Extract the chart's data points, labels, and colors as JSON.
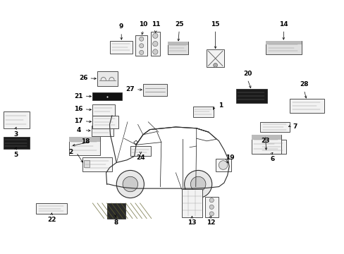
{
  "bg_color": "#ffffff",
  "parts": [
    {
      "id": 1,
      "bx": 0.56,
      "by": 0.42,
      "bw": 0.06,
      "bh": 0.04,
      "nx": 0.64,
      "ny": 0.415,
      "arrow": "left",
      "style": "lined"
    },
    {
      "id": 2,
      "bx": 0.24,
      "by": 0.62,
      "bw": 0.085,
      "bh": 0.055,
      "nx": 0.205,
      "ny": 0.6,
      "arrow": "right",
      "style": "lined_check"
    },
    {
      "id": 3,
      "bx": 0.01,
      "by": 0.44,
      "bw": 0.075,
      "bh": 0.065,
      "nx": 0.045,
      "ny": 0.53,
      "arrow": "up",
      "style": "lined"
    },
    {
      "id": 4,
      "bx": 0.265,
      "by": 0.495,
      "bw": 0.065,
      "bh": 0.04,
      "nx": 0.228,
      "ny": 0.513,
      "arrow": "right",
      "style": "lined_small"
    },
    {
      "id": 5,
      "bx": 0.01,
      "by": 0.54,
      "bw": 0.075,
      "bh": 0.045,
      "nx": 0.045,
      "ny": 0.61,
      "arrow": "up",
      "style": "dark_lined"
    },
    {
      "id": 6,
      "bx": 0.755,
      "by": 0.55,
      "bw": 0.075,
      "bh": 0.055,
      "nx": 0.79,
      "ny": 0.625,
      "arrow": "up",
      "style": "lined"
    },
    {
      "id": 7,
      "bx": 0.755,
      "by": 0.48,
      "bw": 0.085,
      "bh": 0.04,
      "nx": 0.855,
      "ny": 0.498,
      "arrow": "left",
      "style": "lined"
    },
    {
      "id": 8,
      "bx": 0.31,
      "by": 0.8,
      "bw": 0.055,
      "bh": 0.06,
      "nx": 0.337,
      "ny": 0.875,
      "arrow": "up",
      "style": "dark_diag"
    },
    {
      "id": 9,
      "bx": 0.32,
      "by": 0.16,
      "bw": 0.065,
      "bh": 0.05,
      "nx": 0.352,
      "ny": 0.105,
      "arrow": "down",
      "style": "lined"
    },
    {
      "id": 10,
      "bx": 0.393,
      "by": 0.14,
      "bw": 0.035,
      "bh": 0.08,
      "nx": 0.415,
      "ny": 0.095,
      "arrow": "down",
      "style": "circles_v"
    },
    {
      "id": 11,
      "bx": 0.437,
      "by": 0.125,
      "bw": 0.027,
      "bh": 0.095,
      "nx": 0.452,
      "ny": 0.095,
      "arrow": "down",
      "style": "circles_v"
    },
    {
      "id": 12,
      "bx": 0.595,
      "by": 0.775,
      "bw": 0.038,
      "bh": 0.08,
      "nx": 0.612,
      "ny": 0.875,
      "arrow": "up",
      "style": "circles_v"
    },
    {
      "id": 13,
      "bx": 0.527,
      "by": 0.745,
      "bw": 0.06,
      "bh": 0.11,
      "nx": 0.557,
      "ny": 0.875,
      "arrow": "up",
      "style": "grid"
    },
    {
      "id": 14,
      "bx": 0.77,
      "by": 0.16,
      "bw": 0.105,
      "bh": 0.055,
      "nx": 0.823,
      "ny": 0.095,
      "arrow": "down",
      "style": "lined_dark"
    },
    {
      "id": 15,
      "bx": 0.6,
      "by": 0.195,
      "bw": 0.05,
      "bh": 0.07,
      "nx": 0.625,
      "ny": 0.095,
      "arrow": "down",
      "style": "cross_box"
    },
    {
      "id": 16,
      "bx": 0.268,
      "by": 0.41,
      "bw": 0.065,
      "bh": 0.045,
      "nx": 0.228,
      "ny": 0.43,
      "arrow": "right",
      "style": "lined_small"
    },
    {
      "id": 17,
      "bx": 0.268,
      "by": 0.455,
      "bw": 0.075,
      "bh": 0.05,
      "nx": 0.228,
      "ny": 0.477,
      "arrow": "right",
      "style": "lined"
    },
    {
      "id": 18,
      "bx": 0.2,
      "by": 0.54,
      "bw": 0.09,
      "bh": 0.07,
      "nx": 0.248,
      "ny": 0.558,
      "arrow": "right",
      "style": "lined_titled"
    },
    {
      "id": 19,
      "bx": 0.625,
      "by": 0.625,
      "bw": 0.045,
      "bh": 0.05,
      "nx": 0.668,
      "ny": 0.62,
      "arrow": "left",
      "style": "circle_icon"
    },
    {
      "id": 20,
      "bx": 0.685,
      "by": 0.35,
      "bw": 0.09,
      "bh": 0.055,
      "nx": 0.718,
      "ny": 0.29,
      "arrow": "down",
      "style": "dark_lined"
    },
    {
      "id": 21,
      "bx": 0.268,
      "by": 0.365,
      "bw": 0.085,
      "bh": 0.03,
      "nx": 0.228,
      "ny": 0.378,
      "arrow": "right",
      "style": "dark_solid"
    },
    {
      "id": 22,
      "bx": 0.105,
      "by": 0.8,
      "bw": 0.09,
      "bh": 0.042,
      "nx": 0.15,
      "ny": 0.865,
      "arrow": "up",
      "style": "lined"
    },
    {
      "id": 23,
      "bx": 0.73,
      "by": 0.53,
      "bw": 0.085,
      "bh": 0.075,
      "nx": 0.77,
      "ny": 0.555,
      "arrow": "up",
      "style": "lined_titled"
    },
    {
      "id": 24,
      "bx": 0.378,
      "by": 0.575,
      "bw": 0.06,
      "bh": 0.038,
      "nx": 0.408,
      "ny": 0.62,
      "arrow": "up",
      "style": "lined_small"
    },
    {
      "id": 25,
      "bx": 0.487,
      "by": 0.165,
      "bw": 0.06,
      "bh": 0.048,
      "nx": 0.52,
      "ny": 0.095,
      "arrow": "down",
      "style": "lined_dark"
    },
    {
      "id": 26,
      "bx": 0.282,
      "by": 0.28,
      "bw": 0.06,
      "bh": 0.06,
      "nx": 0.242,
      "ny": 0.308,
      "arrow": "right",
      "style": "icon_box"
    },
    {
      "id": 27,
      "bx": 0.415,
      "by": 0.33,
      "bw": 0.07,
      "bh": 0.048,
      "nx": 0.378,
      "ny": 0.352,
      "arrow": "right",
      "style": "icon_box2"
    },
    {
      "id": 28,
      "bx": 0.84,
      "by": 0.39,
      "bw": 0.1,
      "bh": 0.055,
      "nx": 0.882,
      "ny": 0.332,
      "arrow": "down",
      "style": "lined"
    }
  ]
}
